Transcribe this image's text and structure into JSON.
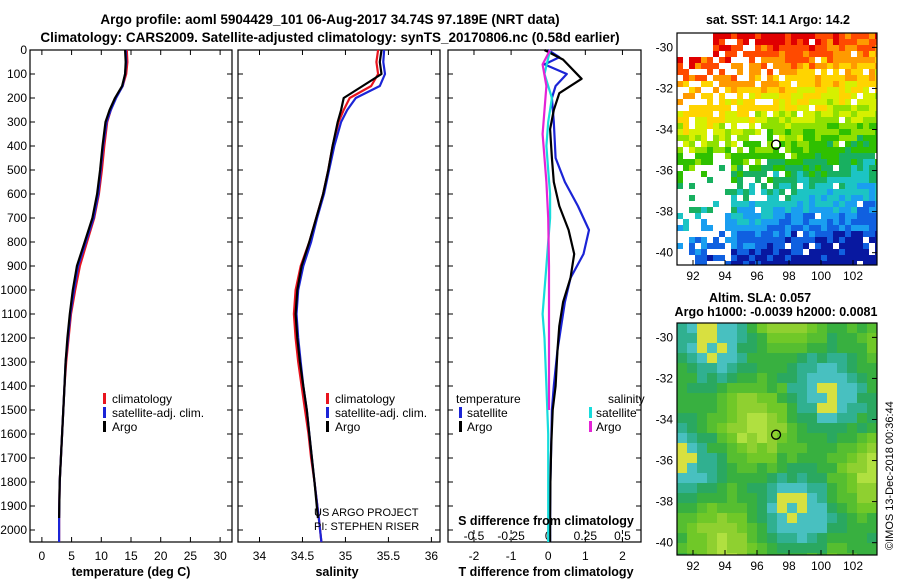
{
  "header": {
    "title_line1": "Argo profile: aoml 5904429_101 06-Aug-2017 34.74S 97.189E (NRT data)",
    "title_line2": "Climatology: CARS2009. Satellite-adjusted climatology: synTS_20170806.nc (0.58d earlier)"
  },
  "colors": {
    "climatology": "#e8141e",
    "satellite": "#1b24d6",
    "argo": "#000000",
    "salinity_sat": "#17dcdc",
    "salinity_argo": "#e423d6"
  },
  "chart_data": [
    {
      "type": "line",
      "name": "temperature-panel",
      "xlabel": "temperature (deg C)",
      "ylabel": "",
      "xlim": [
        -2,
        32
      ],
      "ylim": [
        2050,
        0
      ],
      "xticks": [
        "0",
        "5",
        "10",
        "15",
        "20",
        "25",
        "30"
      ],
      "yticks": [
        "0",
        "100",
        "200",
        "300",
        "400",
        "500",
        "600",
        "700",
        "800",
        "900",
        "1000",
        "1100",
        "1200",
        "1300",
        "1400",
        "1500",
        "1600",
        "1700",
        "1800",
        "1900",
        "2000"
      ],
      "legend": [
        "climatology",
        "satellite-adj. clim.",
        "Argo"
      ],
      "series": [
        {
          "name": "climatology",
          "color": "climatology",
          "x": [
            14.3,
            14.4,
            14.2,
            13.6,
            12.4,
            11.6,
            11.0,
            10.5,
            10.1,
            9.6,
            8.8,
            7.6,
            6.4,
            5.6,
            4.9,
            4.5,
            4.1,
            3.8,
            3.6,
            3.4,
            3.2,
            3.0,
            2.9,
            2.9
          ],
          "y": [
            0,
            50,
            100,
            150,
            200,
            250,
            300,
            400,
            500,
            600,
            700,
            800,
            900,
            1000,
            1100,
            1200,
            1300,
            1400,
            1500,
            1600,
            1700,
            1800,
            1950,
            2050
          ]
        },
        {
          "name": "satellite-adj. clim.",
          "color": "satellite",
          "x": [
            14.1,
            14.2,
            14.0,
            13.6,
            12.5,
            11.6,
            10.9,
            10.3,
            9.9,
            9.5,
            8.7,
            7.4,
            6.1,
            5.4,
            4.8,
            4.4,
            4.0,
            3.8,
            3.6,
            3.4,
            3.2,
            3.0,
            2.9,
            2.9
          ],
          "y": [
            0,
            50,
            100,
            150,
            200,
            250,
            300,
            400,
            500,
            600,
            700,
            800,
            900,
            1000,
            1100,
            1200,
            1300,
            1400,
            1500,
            1600,
            1700,
            1800,
            1950,
            2050
          ]
        },
        {
          "name": "Argo",
          "color": "argo",
          "x": [
            14.0,
            14.1,
            14.0,
            13.5,
            12.3,
            11.4,
            10.7,
            10.2,
            9.8,
            9.3,
            8.5,
            7.2,
            5.9,
            5.2,
            4.7,
            4.3,
            4.0,
            3.8,
            3.6,
            3.4,
            3.2,
            3.0,
            2.9
          ],
          "y": [
            0,
            50,
            100,
            150,
            200,
            250,
            300,
            400,
            500,
            600,
            700,
            800,
            900,
            1000,
            1100,
            1200,
            1300,
            1400,
            1500,
            1600,
            1700,
            1800,
            1950
          ]
        }
      ]
    },
    {
      "type": "line",
      "name": "salinity-panel",
      "xlabel": "salinity",
      "ylabel": "",
      "xlim": [
        33.75,
        36.1
      ],
      "ylim": [
        2050,
        0
      ],
      "xticks": [
        "34",
        "34.5",
        "35",
        "35.5",
        "36"
      ],
      "legend": [
        "climatology",
        "satellite-adj. clim.",
        "Argo"
      ],
      "series": [
        {
          "name": "climatology",
          "color": "climatology",
          "x": [
            35.38,
            35.36,
            35.38,
            35.3,
            35.05,
            34.98,
            34.92,
            34.85,
            34.8,
            34.74,
            34.66,
            34.58,
            34.48,
            34.42,
            34.4,
            34.42,
            34.45,
            34.49,
            34.53,
            34.57,
            34.6,
            34.64,
            34.69,
            34.72
          ],
          "y": [
            0,
            50,
            100,
            150,
            200,
            250,
            300,
            400,
            500,
            600,
            700,
            800,
            900,
            1000,
            1100,
            1200,
            1300,
            1400,
            1500,
            1600,
            1700,
            1800,
            1950,
            2050
          ]
        },
        {
          "name": "satellite-adj. clim.",
          "color": "satellite",
          "x": [
            35.45,
            35.44,
            35.46,
            35.4,
            35.12,
            35.02,
            34.95,
            34.87,
            34.81,
            34.75,
            34.67,
            34.6,
            34.51,
            34.45,
            34.43,
            34.45,
            34.48,
            34.51,
            34.55,
            34.58,
            34.61,
            34.64,
            34.69,
            34.72
          ],
          "y": [
            0,
            50,
            100,
            150,
            200,
            250,
            300,
            400,
            500,
            600,
            700,
            800,
            900,
            1000,
            1100,
            1200,
            1300,
            1400,
            1500,
            1600,
            1700,
            1800,
            1950,
            2050
          ]
        },
        {
          "name": "Argo",
          "color": "argo",
          "x": [
            35.42,
            35.4,
            35.42,
            35.2,
            34.98,
            34.95,
            34.91,
            34.85,
            34.8,
            34.74,
            34.66,
            34.58,
            34.49,
            34.44,
            34.42,
            34.44,
            34.47,
            34.51,
            34.55,
            34.58,
            34.61,
            34.64,
            34.68
          ],
          "y": [
            0,
            50,
            100,
            150,
            200,
            250,
            300,
            400,
            500,
            600,
            700,
            800,
            900,
            1000,
            1100,
            1200,
            1300,
            1400,
            1500,
            1600,
            1700,
            1800,
            1950
          ]
        }
      ]
    },
    {
      "type": "line",
      "name": "difference-panel",
      "xlabel": "T difference from climatology",
      "xlabel_top": "S difference from climatology",
      "xlim": [
        -2.7,
        2.5
      ],
      "ylim": [
        2050,
        0
      ],
      "xticks": [
        "-2",
        "-1",
        "0",
        "1",
        "2"
      ],
      "xticks_top": [
        "-0.5",
        "-0.25",
        "0",
        "0.25",
        "0.5"
      ],
      "legend_title_temperature": "temperature",
      "legend_title_salinity": "salinity",
      "legend_temperature": [
        "satellite",
        "Argo"
      ],
      "legend_salinity": [
        "satellite",
        "Argo"
      ],
      "series": [
        {
          "name": "temperature satellite",
          "color": "satellite",
          "x": [
            0.0,
            0.3,
            -0.1,
            0.5,
            0.2,
            0.1,
            0.15,
            0.2,
            0.45,
            0.8,
            1.1,
            0.95,
            0.6,
            0.45,
            0.35,
            0.25,
            0.15,
            0.1,
            0.08,
            0.06,
            0.05,
            0.05
          ],
          "y": [
            0,
            30,
            60,
            100,
            150,
            200,
            300,
            450,
            550,
            650,
            750,
            850,
            950,
            1050,
            1150,
            1250,
            1400,
            1500,
            1650,
            1800,
            1950,
            2050
          ]
        },
        {
          "name": "temperature Argo",
          "color": "argo",
          "x": [
            -0.1,
            0.4,
            0.9,
            0.3,
            0.15,
            0.05,
            0.1,
            0.15,
            0.3,
            0.55,
            0.7,
            0.6,
            0.4,
            0.3,
            0.25,
            0.2,
            0.12,
            0.08,
            0.06,
            0.05,
            0.05
          ],
          "y": [
            0,
            40,
            120,
            180,
            250,
            330,
            450,
            550,
            650,
            750,
            850,
            950,
            1050,
            1150,
            1250,
            1400,
            1500,
            1650,
            1800,
            1950,
            2050
          ]
        },
        {
          "name": "salinity satellite",
          "color": "salinity_sat",
          "x": [
            0.05,
            -0.1,
            0.1,
            0.0,
            -0.05,
            0.0,
            0.05,
            0.05,
            0.0,
            -0.05,
            -0.1,
            -0.15,
            -0.1,
            -0.05,
            0.0,
            0.0,
            0.0,
            0.0
          ],
          "y": [
            0,
            100,
            200,
            300,
            400,
            500,
            600,
            700,
            800,
            900,
            1000,
            1100,
            1200,
            1400,
            1600,
            1800,
            1950,
            2050
          ]
        },
        {
          "name": "salinity Argo",
          "color": "salinity_argo",
          "x": [
            0.05,
            -0.15,
            -0.05,
            -0.1,
            -0.15,
            -0.1,
            -0.05,
            0.0,
            0.02,
            0.02,
            0.02,
            0.02
          ],
          "y": [
            0,
            60,
            150,
            250,
            350,
            450,
            550,
            700,
            900,
            1100,
            1300,
            1500
          ]
        }
      ]
    },
    {
      "type": "heatmap",
      "name": "sst-map",
      "title": "sat. SST: 14.1 Argo: 14.2",
      "xticks": [
        "92",
        "94",
        "96",
        "98",
        "100",
        "102"
      ],
      "yticks": [
        "-30",
        "-32",
        "-34",
        "-36",
        "-38",
        "-40"
      ],
      "xlim": [
        91,
        103.5
      ],
      "ylim": [
        -40.6,
        -29.3
      ],
      "marker": {
        "lon": 97.19,
        "lat": -34.74
      }
    },
    {
      "type": "heatmap",
      "name": "sla-map",
      "title": "Altim. SLA: 0.057",
      "subtitle": "Argo h1000: -0.0039 h2000: 0.0081",
      "xticks": [
        "92",
        "94",
        "96",
        "98",
        "100",
        "102"
      ],
      "yticks": [
        "-30",
        "-32",
        "-34",
        "-36",
        "-38",
        "-40"
      ],
      "xlim": [
        91,
        103.5
      ],
      "ylim": [
        -40.6,
        -29.3
      ],
      "marker": {
        "lon": 97.19,
        "lat": -34.74
      }
    }
  ],
  "annotations": {
    "project_line1": "US ARGO PROJECT",
    "project_line2": "PI: STEPHEN RISER",
    "imos": "©IMOS 13-Dec-2018 00:36:44"
  }
}
